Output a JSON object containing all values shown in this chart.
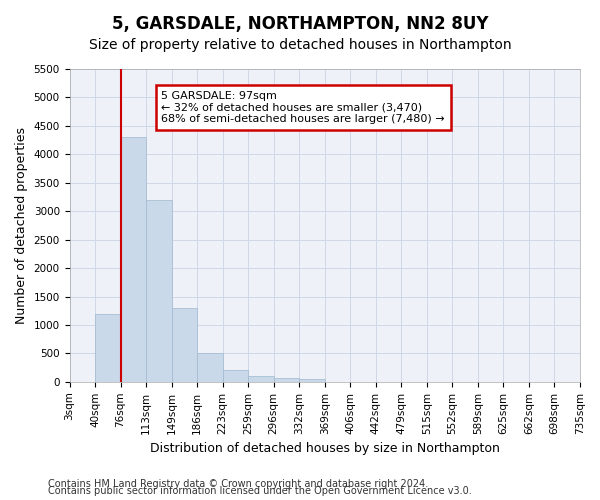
{
  "title": "5, GARSDALE, NORTHAMPTON, NN2 8UY",
  "subtitle": "Size of property relative to detached houses in Northampton",
  "xlabel": "Distribution of detached houses by size in Northampton",
  "ylabel": "Number of detached properties",
  "footer_line1": "Contains HM Land Registry data © Crown copyright and database right 2024.",
  "footer_line2": "Contains public sector information licensed under the Open Government Licence v3.0.",
  "bin_labels": [
    "3sqm",
    "40sqm",
    "76sqm",
    "113sqm",
    "149sqm",
    "186sqm",
    "223sqm",
    "259sqm",
    "296sqm",
    "332sqm",
    "369sqm",
    "406sqm",
    "442sqm",
    "479sqm",
    "515sqm",
    "552sqm",
    "589sqm",
    "625sqm",
    "662sqm",
    "698sqm",
    "735sqm"
  ],
  "bar_values": [
    0,
    1200,
    4300,
    3200,
    1300,
    500,
    200,
    100,
    70,
    50,
    0,
    0,
    0,
    0,
    0,
    0,
    0,
    0,
    0,
    0
  ],
  "ylim": [
    0,
    5500
  ],
  "yticks": [
    0,
    500,
    1000,
    1500,
    2000,
    2500,
    3000,
    3500,
    4000,
    4500,
    5000,
    5500
  ],
  "bar_color": "#c9d9ea",
  "bar_edge_color": "#a0b8d0",
  "red_line_x": 2.0,
  "annotation_text": "5 GARSDALE: 97sqm\n← 32% of detached houses are smaller (3,470)\n68% of semi-detached houses are larger (7,480) →",
  "annotation_box_color": "#ffffff",
  "annotation_box_edge": "#cc0000",
  "grid_color": "#d0d8e8",
  "bg_color": "#eef2f8",
  "title_fontsize": 12,
  "subtitle_fontsize": 10,
  "label_fontsize": 9,
  "tick_fontsize": 7.5,
  "footer_fontsize": 7
}
